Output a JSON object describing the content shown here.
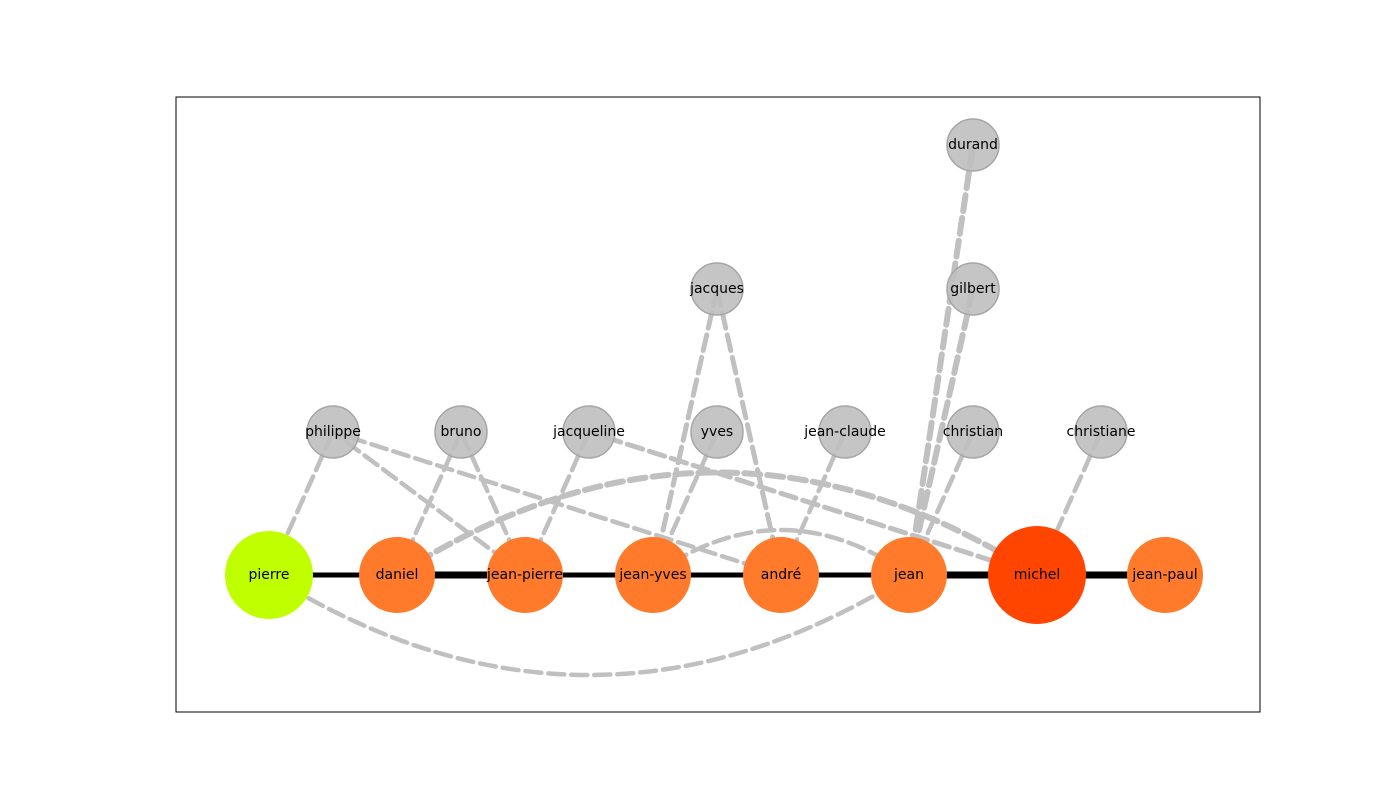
{
  "colors": {
    "background": "#ffffff",
    "frame": "#000000",
    "main_edge": "#000000",
    "secondary_edge": "#c0c0c0",
    "secondary_node": "#bfbfbf",
    "secondary_node_border": "#a6a6a6",
    "pierre": "#c0ff00",
    "orange": "#ff7a2a",
    "michel": "#ff4500"
  },
  "nodes": [
    {
      "id": "pierre",
      "label": "pierre",
      "group": "main",
      "color": "#c0ff00"
    },
    {
      "id": "daniel",
      "label": "daniel",
      "group": "main",
      "color": "#ff7a2a"
    },
    {
      "id": "jean-pierre",
      "label": "jean-pierre",
      "group": "main",
      "color": "#ff7a2a"
    },
    {
      "id": "jean-yves",
      "label": "jean-yves",
      "group": "main",
      "color": "#ff7a2a"
    },
    {
      "id": "andre",
      "label": "andré",
      "group": "main",
      "color": "#ff7a2a"
    },
    {
      "id": "jean",
      "label": "jean",
      "group": "main",
      "color": "#ff7a2a"
    },
    {
      "id": "michel",
      "label": "michel",
      "group": "main",
      "color": "#ff4500"
    },
    {
      "id": "jean-paul",
      "label": "jean-paul",
      "group": "main",
      "color": "#ff7a2a"
    },
    {
      "id": "philippe",
      "label": "philippe",
      "group": "secondary"
    },
    {
      "id": "bruno",
      "label": "bruno",
      "group": "secondary"
    },
    {
      "id": "jacqueline",
      "label": "jacqueline",
      "group": "secondary"
    },
    {
      "id": "yves",
      "label": "yves",
      "group": "secondary"
    },
    {
      "id": "jean-claude",
      "label": "jean-claude",
      "group": "secondary"
    },
    {
      "id": "christian",
      "label": "christian",
      "group": "secondary"
    },
    {
      "id": "christiane",
      "label": "christiane",
      "group": "secondary"
    },
    {
      "id": "jacques",
      "label": "jacques",
      "group": "secondary"
    },
    {
      "id": "gilbert",
      "label": "gilbert",
      "group": "secondary"
    },
    {
      "id": "durand",
      "label": "durand",
      "group": "secondary"
    }
  ],
  "main_edges": [
    {
      "source": "pierre",
      "target": "daniel"
    },
    {
      "source": "daniel",
      "target": "jean-pierre"
    },
    {
      "source": "jean-pierre",
      "target": "jean-yves"
    },
    {
      "source": "jean-yves",
      "target": "andre"
    },
    {
      "source": "andre",
      "target": "jean"
    },
    {
      "source": "jean",
      "target": "michel"
    },
    {
      "source": "michel",
      "target": "jean-paul"
    }
  ],
  "dashed_edges": [
    {
      "source": "pierre",
      "target": "philippe"
    },
    {
      "source": "daniel",
      "target": "bruno"
    },
    {
      "source": "jean-pierre",
      "target": "bruno"
    },
    {
      "source": "jean-pierre",
      "target": "philippe"
    },
    {
      "source": "jean-pierre",
      "target": "jacqueline"
    },
    {
      "source": "jean-yves",
      "target": "yves"
    },
    {
      "source": "jean-yves",
      "target": "jacques"
    },
    {
      "source": "andre",
      "target": "jacques"
    },
    {
      "source": "andre",
      "target": "philippe"
    },
    {
      "source": "andre",
      "target": "jean-claude"
    },
    {
      "source": "jean",
      "target": "christian"
    },
    {
      "source": "jean",
      "target": "gilbert"
    },
    {
      "source": "jean",
      "target": "durand"
    },
    {
      "source": "michel",
      "target": "jacqueline"
    },
    {
      "source": "michel",
      "target": "christiane"
    },
    {
      "source": "pierre",
      "target": "jean"
    },
    {
      "source": "daniel",
      "target": "michel"
    },
    {
      "source": "jean-yves",
      "target": "jean"
    }
  ]
}
